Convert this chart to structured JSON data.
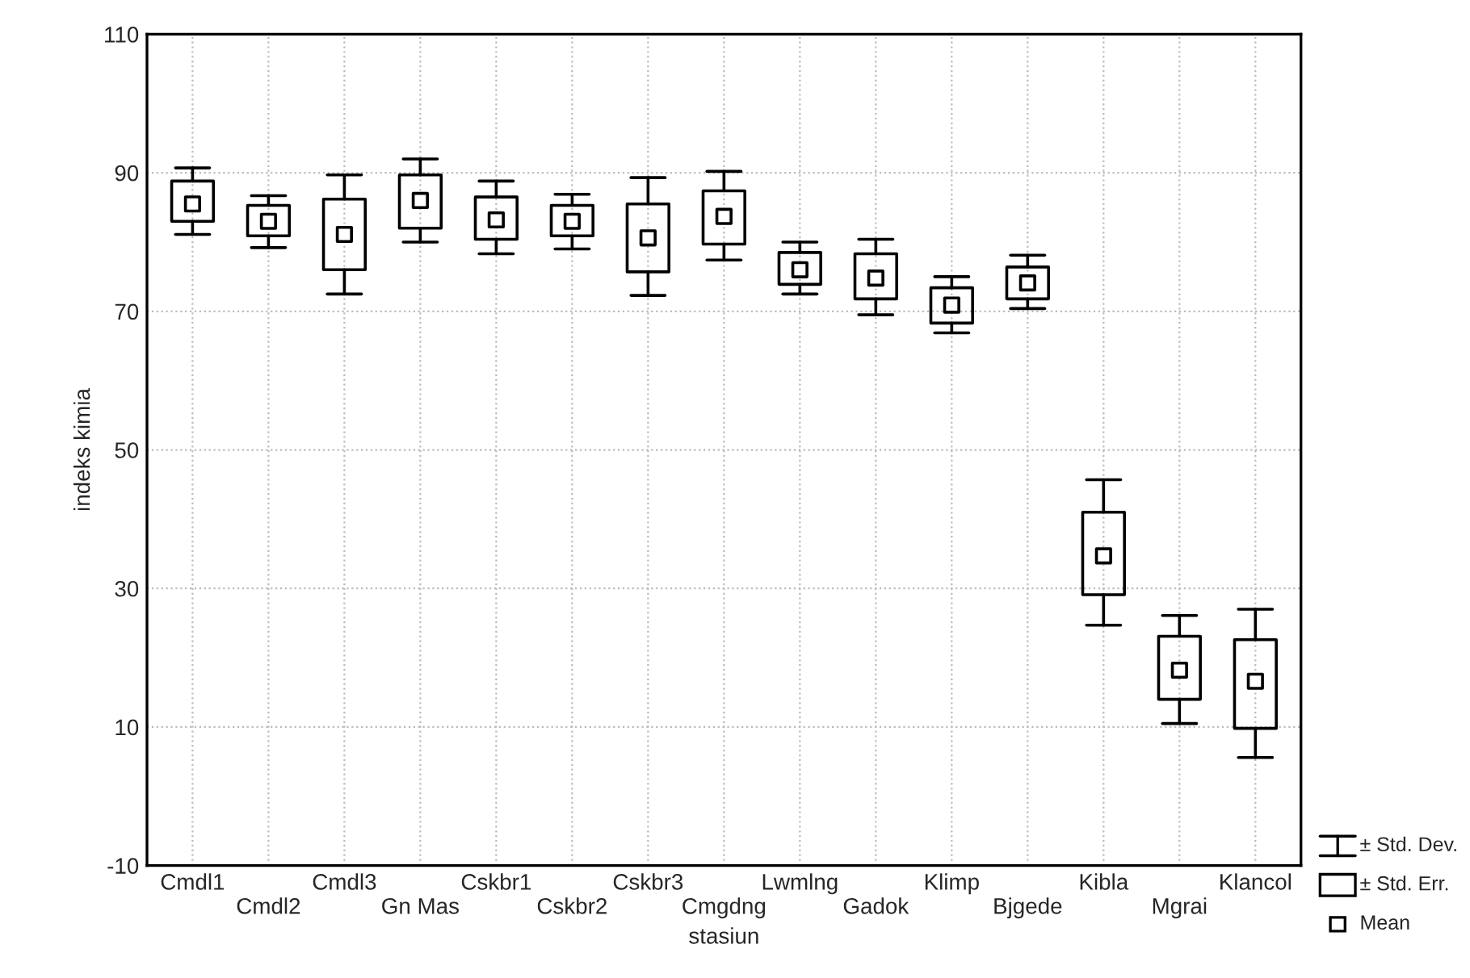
{
  "chart_data": {
    "type": "box",
    "xlabel": "stasiun",
    "ylabel": "indeks kimia",
    "categories": [
      "Cmdl1",
      "Cmdl2",
      "Cmdl3",
      "Gn Mas",
      "Cskbr1",
      "Cskbr2",
      "Cskbr3",
      "Cmgdng",
      "Lwmlng",
      "Gadok",
      "Klimp",
      "Bjgede",
      "Kibla",
      "Mgrai",
      "Klancol"
    ],
    "boxes": [
      {
        "low": 81.1,
        "q1": 83.0,
        "median": 85.5,
        "q3": 88.8,
        "high": 90.7
      },
      {
        "low": 79.2,
        "q1": 80.9,
        "median": 83.0,
        "q3": 85.3,
        "high": 86.7
      },
      {
        "low": 72.5,
        "q1": 76.0,
        "median": 81.1,
        "q3": 86.2,
        "high": 89.7
      },
      {
        "low": 80.0,
        "q1": 82.0,
        "median": 86.0,
        "q3": 89.7,
        "high": 92.0
      },
      {
        "low": 78.3,
        "q1": 80.4,
        "median": 83.2,
        "q3": 86.5,
        "high": 88.8
      },
      {
        "low": 79.0,
        "q1": 80.9,
        "median": 83.0,
        "q3": 85.3,
        "high": 86.9
      },
      {
        "low": 72.3,
        "q1": 75.7,
        "median": 80.6,
        "q3": 85.5,
        "high": 89.3
      },
      {
        "low": 77.4,
        "q1": 79.7,
        "median": 83.7,
        "q3": 87.4,
        "high": 90.2
      },
      {
        "low": 72.5,
        "q1": 73.9,
        "median": 76.0,
        "q3": 78.5,
        "high": 80.0
      },
      {
        "low": 69.5,
        "q1": 71.8,
        "median": 74.8,
        "q3": 78.3,
        "high": 80.4
      },
      {
        "low": 66.9,
        "q1": 68.3,
        "median": 70.9,
        "q3": 73.4,
        "high": 75.0
      },
      {
        "low": 70.4,
        "q1": 71.8,
        "median": 74.1,
        "q3": 76.4,
        "high": 78.1
      },
      {
        "low": 24.7,
        "q1": 29.1,
        "median": 34.7,
        "q3": 41.0,
        "high": 45.7
      },
      {
        "low": 10.5,
        "q1": 14.0,
        "median": 18.2,
        "q3": 23.1,
        "high": 26.1
      },
      {
        "low": 5.6,
        "q1": 9.8,
        "median": 16.6,
        "q3": 22.6,
        "high": 27.0
      }
    ],
    "ylim": [
      -10,
      110
    ],
    "yticks": [
      -10,
      10,
      30,
      50,
      70,
      90,
      110
    ],
    "grid": true,
    "marker": "square",
    "annotations": [
      "± Std. Dev.",
      "± Std. Err.",
      "Mean"
    ]
  }
}
